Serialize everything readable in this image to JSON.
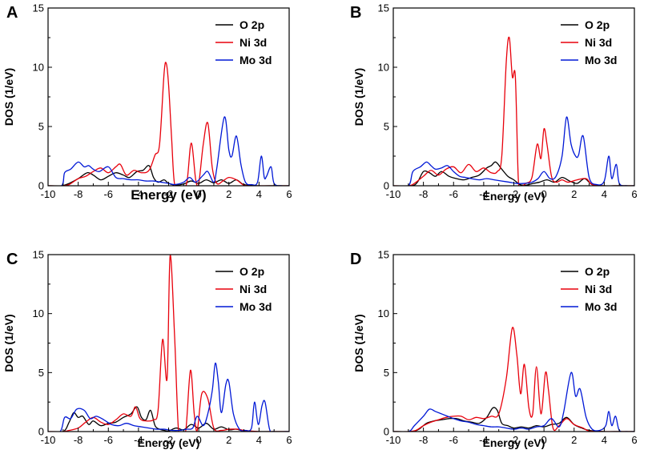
{
  "chart_data": [
    {
      "panel_label": "A",
      "type": "line",
      "xlabel": "Energy (eV)",
      "ylabel": "DOS (1/eV)",
      "xlim": [
        -10,
        6
      ],
      "ylim": [
        0,
        15
      ],
      "x_ticks": [
        "-10",
        "-8",
        "-6",
        "-4",
        "-2",
        "0",
        "2",
        "4",
        "6"
      ],
      "y_ticks": [
        "0",
        "5",
        "10",
        "15"
      ],
      "legend_position": "top-right",
      "series": [
        {
          "name": "O 2p",
          "color": "#000000",
          "x": [
            -10,
            -9.1,
            -8.6,
            -8,
            -7.4,
            -7,
            -6.5,
            -6,
            -5.5,
            -5,
            -4.6,
            -4.1,
            -3.7,
            -3.3,
            -3,
            -2.7,
            -2.3,
            -2,
            -1.5,
            -1,
            -0.5,
            0,
            0.5,
            1,
            1.5,
            2,
            2.5,
            3,
            4,
            5,
            6
          ],
          "y": [
            0,
            0,
            0.2,
            0.6,
            1.1,
            0.9,
            0.5,
            0.8,
            1.1,
            0.9,
            0.7,
            1.2,
            1.3,
            1.7,
            0.7,
            0.3,
            0.5,
            0.2,
            0.05,
            0.15,
            0.4,
            0.2,
            0.5,
            0.25,
            0.5,
            0.2,
            0.5,
            0.1,
            0,
            0,
            0
          ]
        },
        {
          "name": "Ni 3d",
          "color": "#e8000b",
          "x": [
            -10,
            -9,
            -8.6,
            -8,
            -7.5,
            -7,
            -6.5,
            -6,
            -5.5,
            -5.2,
            -4.8,
            -4.3,
            -3.8,
            -3.3,
            -2.9,
            -2.6,
            -2.3,
            -2.15,
            -2,
            -1.8,
            -1.6,
            -1.2,
            -0.8,
            -0.5,
            -0.2,
            0,
            0.3,
            0.6,
            0.9,
            1.2,
            1.6,
            2,
            2.5,
            3,
            3.5,
            4,
            5,
            6
          ],
          "y": [
            0,
            0,
            0.1,
            0.6,
            0.8,
            1.2,
            1.5,
            1.1,
            1.6,
            1.8,
            0.9,
            1.3,
            1.1,
            1.3,
            2.6,
            3.5,
            9.5,
            10.3,
            8.5,
            4,
            0.1,
            0,
            0.2,
            3.6,
            0.5,
            0.2,
            3.5,
            5.3,
            1.5,
            0.2,
            0.4,
            0.7,
            0.5,
            0.05,
            0,
            0,
            0,
            0
          ]
        },
        {
          "name": "Mo 3d",
          "color": "#0018d6",
          "x": [
            -10,
            -9.1,
            -8.9,
            -8.5,
            -8,
            -7.6,
            -7.3,
            -7,
            -6.6,
            -6,
            -5.5,
            -5,
            -4.5,
            -4,
            -3.5,
            -3,
            -2.5,
            -2,
            -1.6,
            -1,
            -0.6,
            -0.2,
            0.3,
            0.6,
            1,
            1.2,
            1.7,
            2,
            2.2,
            2.5,
            2.8,
            3.1,
            3.5,
            3.9,
            4.15,
            4.35,
            4.5,
            4.8,
            5,
            5.5,
            6
          ],
          "y": [
            0,
            0,
            1.1,
            1.4,
            2,
            1.6,
            1.7,
            1.4,
            1.2,
            1.6,
            0.7,
            0.6,
            0.5,
            0.5,
            0.4,
            0.4,
            0.3,
            0.2,
            0.1,
            0.3,
            0.7,
            0.3,
            0.9,
            1.2,
            0.3,
            1.5,
            5.8,
            3,
            2.5,
            4.2,
            1.8,
            0.3,
            0.1,
            0.3,
            2.5,
            0.7,
            0.8,
            1.6,
            0.2,
            0,
            0
          ]
        }
      ]
    },
    {
      "panel_label": "B",
      "type": "line",
      "xlabel": "Energy (eV)",
      "ylabel": "DOS (1/eV)",
      "xlim": [
        -10,
        6
      ],
      "ylim": [
        0,
        15
      ],
      "x_ticks": [
        "-10",
        "-8",
        "-6",
        "-4",
        "-2",
        "0",
        "2",
        "4",
        "6"
      ],
      "y_ticks": [
        "0",
        "5",
        "10",
        "15"
      ],
      "legend_position": "top-right",
      "series": [
        {
          "name": "O 2p",
          "color": "#000000",
          "x": [
            -10,
            -8.8,
            -8.4,
            -8,
            -7.6,
            -7.2,
            -6.8,
            -6.3,
            -5.8,
            -5.3,
            -4.8,
            -4.3,
            -3.8,
            -3.5,
            -3.2,
            -2.8,
            -2.4,
            -2,
            -1.6,
            -1.2,
            -0.7,
            -0.3,
            0.2,
            0.7,
            1.2,
            1.7,
            2.2,
            2.7,
            3.2,
            4,
            5,
            6
          ],
          "y": [
            0,
            0,
            0.3,
            1.2,
            1.1,
            0.8,
            1.2,
            0.8,
            0.6,
            0.5,
            0.7,
            0.9,
            1.5,
            1.7,
            2,
            1.4,
            0.8,
            0.5,
            0.1,
            0.05,
            0.2,
            0.3,
            0.5,
            0.3,
            0.7,
            0.4,
            0.2,
            0.6,
            0.1,
            0,
            0,
            0
          ]
        },
        {
          "name": "Ni 3d",
          "color": "#e8000b",
          "x": [
            -10,
            -9,
            -8.6,
            -8,
            -7.5,
            -7,
            -6.5,
            -6,
            -5.5,
            -5,
            -4.5,
            -4,
            -3.5,
            -3.1,
            -2.8,
            -2.5,
            -2.3,
            -2.1,
            -1.9,
            -1.7,
            -1.5,
            -1.2,
            -0.8,
            -0.45,
            -0.2,
            0,
            0.2,
            0.5,
            0.8,
            1.2,
            1.6,
            2.2,
            2.8,
            3.2,
            4,
            5,
            6
          ],
          "y": [
            0,
            0,
            0.2,
            0.8,
            1.3,
            0.9,
            1.4,
            1.6,
            1.1,
            1.8,
            1.2,
            1.5,
            1.1,
            1.2,
            2.5,
            10.5,
            12.5,
            9.2,
            9.2,
            0.5,
            0,
            0.2,
            0.7,
            3.5,
            2.3,
            4.8,
            3.5,
            0.8,
            0.3,
            0.5,
            0.3,
            0.5,
            0.6,
            0.1,
            0,
            0,
            0
          ]
        },
        {
          "name": "Mo 3d",
          "color": "#0018d6",
          "x": [
            -10,
            -9,
            -8.7,
            -8.2,
            -7.8,
            -7.5,
            -7.2,
            -6.8,
            -6.4,
            -6,
            -5.6,
            -5.2,
            -4.8,
            -4.3,
            -3.8,
            -3.3,
            -2.8,
            -2.3,
            -1.8,
            -1.3,
            -0.8,
            -0.4,
            0,
            0.4,
            0.8,
            1.2,
            1.5,
            1.8,
            2.1,
            2.3,
            2.6,
            3,
            3.5,
            4,
            4.3,
            4.5,
            4.8,
            5,
            5.5,
            6
          ],
          "y": [
            0,
            0,
            1.2,
            1.6,
            2,
            1.7,
            1.4,
            1.5,
            1.7,
            1.2,
            0.8,
            0.7,
            0.6,
            0.5,
            0.6,
            0.5,
            0.4,
            0.3,
            0.2,
            0.2,
            0.3,
            0.6,
            1.2,
            0.6,
            0.8,
            2.5,
            5.8,
            3.5,
            2.5,
            2.6,
            4.2,
            0.7,
            0.1,
            0.4,
            2.5,
            0.6,
            1.8,
            0.2,
            0,
            0
          ]
        }
      ]
    },
    {
      "panel_label": "C",
      "type": "line",
      "xlabel": "Energy (eV)",
      "ylabel": "DOS (1/eV)",
      "xlim": [
        -10,
        6
      ],
      "ylim": [
        0,
        15
      ],
      "x_ticks": [
        "-10",
        "-8",
        "-6",
        "-4",
        "-2",
        "0",
        "2",
        "4",
        "6"
      ],
      "y_ticks": [
        "0",
        "5",
        "10",
        "15"
      ],
      "legend_position": "top-right",
      "series": [
        {
          "name": "O 2p",
          "color": "#000000",
          "x": [
            -10,
            -9,
            -8.6,
            -8.3,
            -8,
            -7.7,
            -7.3,
            -7,
            -6.5,
            -6,
            -5.5,
            -5,
            -4.5,
            -4.1,
            -3.8,
            -3.5,
            -3.2,
            -2.9,
            -2.6,
            -2.3,
            -2,
            -1.5,
            -1,
            -0.5,
            0,
            0.5,
            1,
            1.5,
            2,
            2.5,
            3,
            4,
            5,
            6
          ],
          "y": [
            0,
            0,
            0.8,
            1.6,
            1.2,
            1.3,
            0.6,
            0.9,
            0.5,
            0.7,
            0.8,
            1.2,
            1.5,
            2.1,
            1.2,
            1,
            1.8,
            0.5,
            0.2,
            0.1,
            0.05,
            0.3,
            0.15,
            0.6,
            0.3,
            0.7,
            0.2,
            0.4,
            0.15,
            0.2,
            0.05,
            0,
            0,
            0
          ]
        },
        {
          "name": "Ni 3d",
          "color": "#e8000b",
          "x": [
            -10,
            -9,
            -8.6,
            -8,
            -7.5,
            -7,
            -6.5,
            -6,
            -5.5,
            -5,
            -4.5,
            -4.2,
            -3.9,
            -3.5,
            -3,
            -2.7,
            -2.4,
            -2.1,
            -1.9,
            -1.6,
            -1.35,
            -1.1,
            -0.85,
            -0.55,
            -0.3,
            -0.1,
            0.2,
            0.6,
            1,
            1.5,
            2,
            2.6,
            3,
            4,
            5,
            6
          ],
          "y": [
            0,
            0,
            0.1,
            0.3,
            0.8,
            1.2,
            0.8,
            0.6,
            1,
            1.5,
            1.3,
            2.1,
            1.1,
            0.9,
            1,
            1.8,
            7.8,
            4.5,
            14.9,
            8,
            0.2,
            0,
            0.2,
            5.2,
            1.5,
            0.1,
            3.2,
            2.8,
            0.3,
            0.1,
            0.2,
            0.2,
            0.1,
            0,
            0,
            0
          ]
        },
        {
          "name": "Mo 3d",
          "color": "#0018d6",
          "x": [
            -10,
            -9.2,
            -8.9,
            -8.5,
            -8.1,
            -7.6,
            -7.2,
            -6.8,
            -6.3,
            -5.8,
            -5.3,
            -4.8,
            -4.3,
            -3.8,
            -3.3,
            -2.8,
            -2.3,
            -1.8,
            -1.3,
            -0.8,
            -0.4,
            -0.1,
            0.3,
            0.6,
            0.9,
            1.1,
            1.3,
            1.5,
            1.8,
            2,
            2.3,
            2.7,
            3.1,
            3.5,
            3.7,
            3.95,
            4.2,
            4.4,
            4.7,
            5,
            6
          ],
          "y": [
            0,
            0,
            1.2,
            1.1,
            1.9,
            1.8,
            1.1,
            1.3,
            1,
            0.6,
            0.5,
            0.7,
            0.5,
            0.4,
            0.3,
            0.2,
            0.2,
            0.1,
            0.1,
            0.2,
            0.3,
            1.3,
            0.5,
            1.5,
            3.5,
            5.8,
            4.2,
            1.6,
            4,
            4.2,
            1.5,
            0.2,
            0.1,
            0.3,
            2.5,
            0.6,
            2.2,
            2.5,
            0.2,
            0,
            0
          ]
        }
      ]
    },
    {
      "panel_label": "D",
      "type": "line",
      "xlabel": "Energy (eV)",
      "ylabel": "DOS (1/eV)",
      "xlim": [
        -10,
        6
      ],
      "ylim": [
        0,
        15
      ],
      "x_ticks": [
        "-10",
        "-8",
        "-6",
        "-4",
        "-2",
        "0",
        "2",
        "4",
        "6"
      ],
      "y_ticks": [
        "0",
        "5",
        "10",
        "15"
      ],
      "legend_position": "top-right",
      "series": [
        {
          "name": "O 2p",
          "color": "#000000",
          "x": [
            -10,
            -8.8,
            -8.3,
            -7.8,
            -7.3,
            -6.8,
            -6.3,
            -5.8,
            -5.3,
            -4.8,
            -4.3,
            -3.8,
            -3.4,
            -3.1,
            -2.8,
            -2.4,
            -2,
            -1.5,
            -1,
            -0.5,
            0,
            0.5,
            1,
            1.5,
            2,
            2.5,
            3,
            4,
            5,
            6
          ],
          "y": [
            0,
            0,
            0.2,
            0.7,
            0.9,
            1,
            1.1,
            1.1,
            0.9,
            0.8,
            0.7,
            1.2,
            2,
            1.8,
            0.7,
            0.5,
            0.3,
            0.4,
            0.3,
            0.5,
            0.4,
            0.6,
            0.7,
            1.2,
            0.6,
            0.3,
            0.1,
            0,
            0,
            0
          ]
        },
        {
          "name": "Ni 3d",
          "color": "#e8000b",
          "x": [
            -10,
            -9,
            -8.5,
            -8,
            -7.5,
            -7,
            -6.5,
            -6,
            -5.5,
            -5,
            -4.5,
            -4,
            -3.5,
            -3,
            -2.5,
            -2.1,
            -1.8,
            -1.55,
            -1.3,
            -1,
            -0.75,
            -0.5,
            -0.2,
            0.1,
            0.3,
            0.6,
            1,
            1.5,
            2,
            2.6,
            3,
            4,
            5,
            6
          ],
          "y": [
            0,
            0,
            0.1,
            0.5,
            0.8,
            1,
            1.2,
            1.3,
            1.3,
            1,
            1.2,
            1.1,
            1.3,
            1.5,
            4.5,
            8.8,
            6.5,
            3.2,
            5.7,
            2,
            1.5,
            5.5,
            1.5,
            5,
            3.5,
            0.3,
            0.5,
            1.1,
            0.6,
            0.3,
            0.05,
            0,
            0,
            0
          ]
        },
        {
          "name": "Mo 3d",
          "color": "#0018d6",
          "x": [
            -10,
            -9,
            -8.6,
            -8,
            -7.6,
            -7.2,
            -6.8,
            -6.4,
            -6,
            -5.5,
            -5,
            -4.5,
            -4,
            -3.5,
            -3,
            -2.5,
            -2,
            -1.5,
            -1,
            -0.5,
            0,
            0.5,
            1,
            1.3,
            1.8,
            2.1,
            2.4,
            2.8,
            3.2,
            3.7,
            4.1,
            4.3,
            4.5,
            4.75,
            5,
            5.5,
            6
          ],
          "y": [
            0,
            0,
            0.5,
            1.3,
            1.9,
            1.7,
            1.5,
            1.3,
            1.1,
            0.9,
            0.8,
            0.6,
            0.5,
            0.4,
            0.4,
            0.3,
            0.2,
            0.3,
            0.2,
            0.4,
            0.5,
            1.1,
            0.4,
            1.6,
            5,
            3,
            3.6,
            1.2,
            0.2,
            0.1,
            0.5,
            1.7,
            0.5,
            1.3,
            0.1,
            0,
            0
          ]
        }
      ]
    }
  ]
}
